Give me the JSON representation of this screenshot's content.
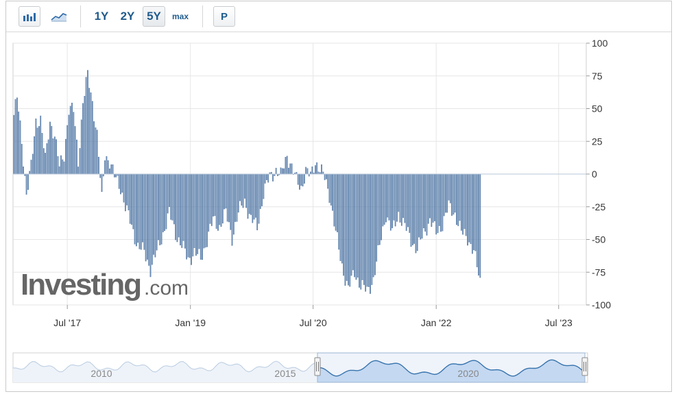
{
  "toolbar": {
    "icons": [
      "bar-chart-icon",
      "line-chart-icon"
    ],
    "ranges": [
      "1Y",
      "2Y",
      "5Y",
      "max"
    ],
    "active_range": "5Y",
    "p_button": "P"
  },
  "watermark": {
    "brand": "Investing",
    "suffix": ".com"
  },
  "colors": {
    "bar": "#6a8cb5",
    "bar_edge": "#3f6796",
    "grid": "#e6e6e6",
    "nav_line": "#2d6ea8",
    "nav_fill": "#cfe1f5"
  },
  "navigator": {
    "labels": [
      "2010",
      "2015",
      "2020"
    ]
  },
  "chart_data": {
    "type": "bar",
    "title": "",
    "xlabel": "",
    "ylabel": "",
    "ylim": [
      -100,
      100
    ],
    "y_ticks": [
      "100",
      "75",
      "50",
      "25",
      "0",
      "-25",
      "-50",
      "-75",
      "-100"
    ],
    "x_ticks": [
      "Jul '17",
      "Jan '19",
      "Jul '20",
      "Jan '22",
      "Jul '23"
    ],
    "x_range": [
      "2016-11",
      "2023-11"
    ],
    "frequency": "weekly",
    "grid": true,
    "legend": "none",
    "keyframes": [
      [
        "2016-11-05",
        45
      ],
      [
        "2016-11-19",
        58
      ],
      [
        "2016-12-10",
        25
      ],
      [
        "2016-12-31",
        -15
      ],
      [
        "2017-01-21",
        5
      ],
      [
        "2017-02-11",
        40
      ],
      [
        "2017-03-04",
        42
      ],
      [
        "2017-03-25",
        10
      ],
      [
        "2017-04-15",
        40
      ],
      [
        "2017-05-06",
        30
      ],
      [
        "2017-05-27",
        5
      ],
      [
        "2017-06-17",
        15
      ],
      [
        "2017-07-08",
        50
      ],
      [
        "2017-07-29",
        48
      ],
      [
        "2017-08-19",
        10
      ],
      [
        "2017-09-09",
        55
      ],
      [
        "2017-09-30",
        75
      ],
      [
        "2017-10-21",
        55
      ],
      [
        "2017-11-11",
        30
      ],
      [
        "2017-12-02",
        -20
      ],
      [
        "2017-12-16",
        15
      ],
      [
        "2018-01-06",
        10
      ],
      [
        "2018-01-27",
        -2
      ],
      [
        "2018-02-24",
        -10
      ],
      [
        "2018-03-17",
        -25
      ],
      [
        "2018-04-14",
        -40
      ],
      [
        "2018-05-12",
        -55
      ],
      [
        "2018-06-09",
        -60
      ],
      [
        "2018-07-07",
        -72
      ],
      [
        "2018-08-04",
        -60
      ],
      [
        "2018-09-01",
        -45
      ],
      [
        "2018-09-29",
        -30
      ],
      [
        "2018-10-27",
        -45
      ],
      [
        "2018-11-24",
        -55
      ],
      [
        "2018-12-22",
        -65
      ],
      [
        "2019-01-19",
        -60
      ],
      [
        "2019-02-16",
        -65
      ],
      [
        "2019-03-16",
        -50
      ],
      [
        "2019-04-13",
        -35
      ],
      [
        "2019-05-11",
        -40
      ],
      [
        "2019-06-08",
        -30
      ],
      [
        "2019-07-06",
        -48
      ],
      [
        "2019-08-03",
        -30
      ],
      [
        "2019-08-31",
        -20
      ],
      [
        "2019-09-28",
        -35
      ],
      [
        "2019-10-26",
        -40
      ],
      [
        "2019-11-23",
        -15
      ],
      [
        "2019-12-21",
        -2
      ],
      [
        "2020-01-18",
        3
      ],
      [
        "2020-02-08",
        -2
      ],
      [
        "2020-03-07",
        15
      ],
      [
        "2020-03-28",
        5
      ],
      [
        "2020-04-18",
        -5
      ],
      [
        "2020-05-09",
        -10
      ],
      [
        "2020-05-30",
        2
      ],
      [
        "2020-06-20",
        -2
      ],
      [
        "2020-07-11",
        10
      ],
      [
        "2020-08-01",
        3
      ],
      [
        "2020-08-22",
        -3
      ],
      [
        "2020-09-12",
        -15
      ],
      [
        "2020-10-10",
        -45
      ],
      [
        "2020-11-07",
        -70
      ],
      [
        "2020-12-05",
        -88
      ],
      [
        "2021-01-02",
        -75
      ],
      [
        "2021-01-30",
        -85
      ],
      [
        "2021-02-27",
        -90
      ],
      [
        "2021-03-27",
        -80
      ],
      [
        "2021-04-24",
        -55
      ],
      [
        "2021-05-22",
        -30
      ],
      [
        "2021-06-19",
        -45
      ],
      [
        "2021-07-17",
        -30
      ],
      [
        "2021-08-14",
        -40
      ],
      [
        "2021-09-11",
        -50
      ],
      [
        "2021-10-09",
        -58
      ],
      [
        "2021-11-06",
        -45
      ],
      [
        "2021-12-04",
        -35
      ],
      [
        "2022-01-01",
        -45
      ],
      [
        "2022-01-29",
        -38
      ],
      [
        "2022-02-26",
        -25
      ],
      [
        "2022-03-26",
        -30
      ],
      [
        "2022-04-23",
        -45
      ],
      [
        "2022-05-21",
        -48
      ],
      [
        "2022-06-18",
        -60
      ],
      [
        "2022-07-16",
        -82
      ]
    ]
  }
}
